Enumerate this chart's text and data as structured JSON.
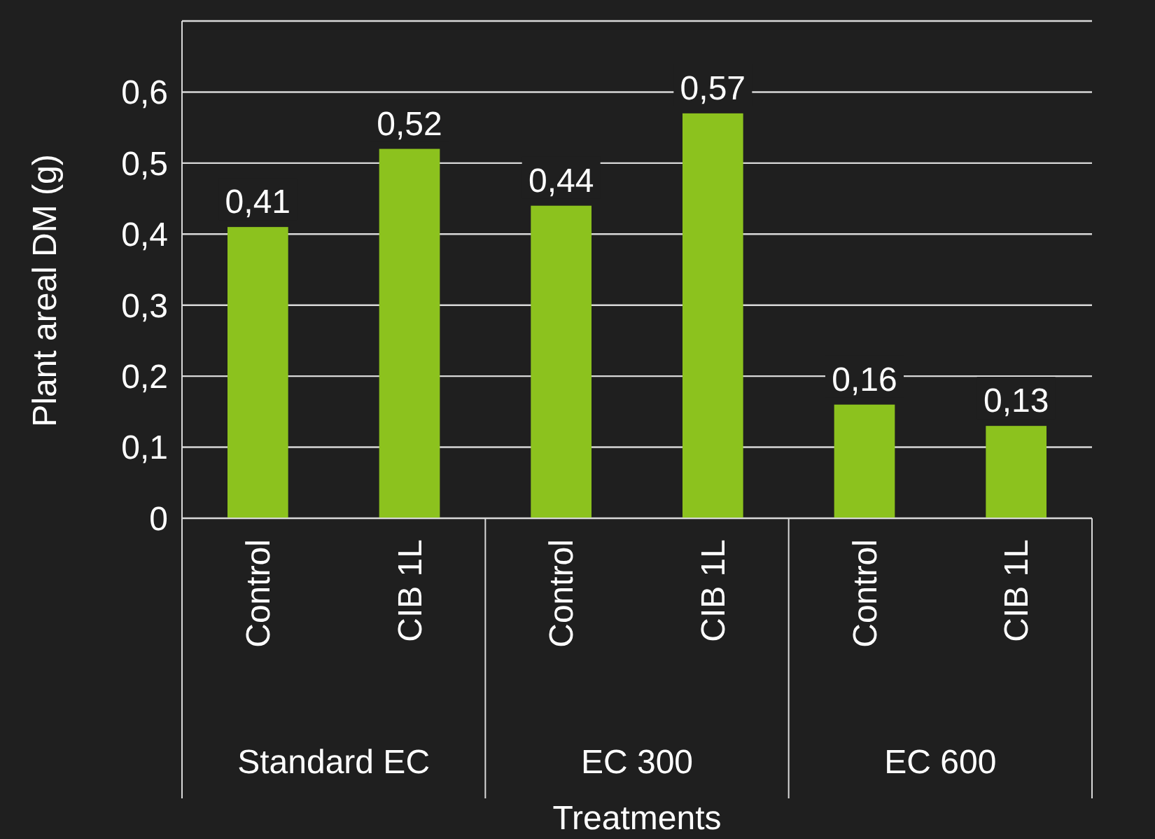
{
  "chart_data": {
    "type": "bar",
    "xlabel": "Treatments",
    "ylabel": "Plant areal DM (g)",
    "categories": [
      "Control",
      "CIB 1L",
      "Control",
      "CIB 1L",
      "Control",
      "CIB 1L"
    ],
    "values": [
      0.41,
      0.52,
      0.44,
      0.57,
      0.16,
      0.13
    ],
    "value_labels": [
      "0,41",
      "0,52",
      "0,44",
      "0,57",
      "0,16",
      "0,13"
    ],
    "color": "#8cc21e",
    "ylim": [
      0,
      0.7
    ],
    "yticks": [
      {
        "value": 0,
        "label": "0"
      },
      {
        "value": 0.1,
        "label": "0,1"
      },
      {
        "value": 0.2,
        "label": "0,2"
      },
      {
        "value": 0.3,
        "label": "0,3"
      },
      {
        "value": 0.4,
        "label": "0,4"
      },
      {
        "value": 0.5,
        "label": "0,5"
      },
      {
        "value": 0.6,
        "label": "0,6"
      },
      {
        "value": 0.7,
        "label": null
      }
    ],
    "grid": "y",
    "annotations": [
      "Standard EC",
      "EC 300",
      "EC 600"
    ]
  }
}
